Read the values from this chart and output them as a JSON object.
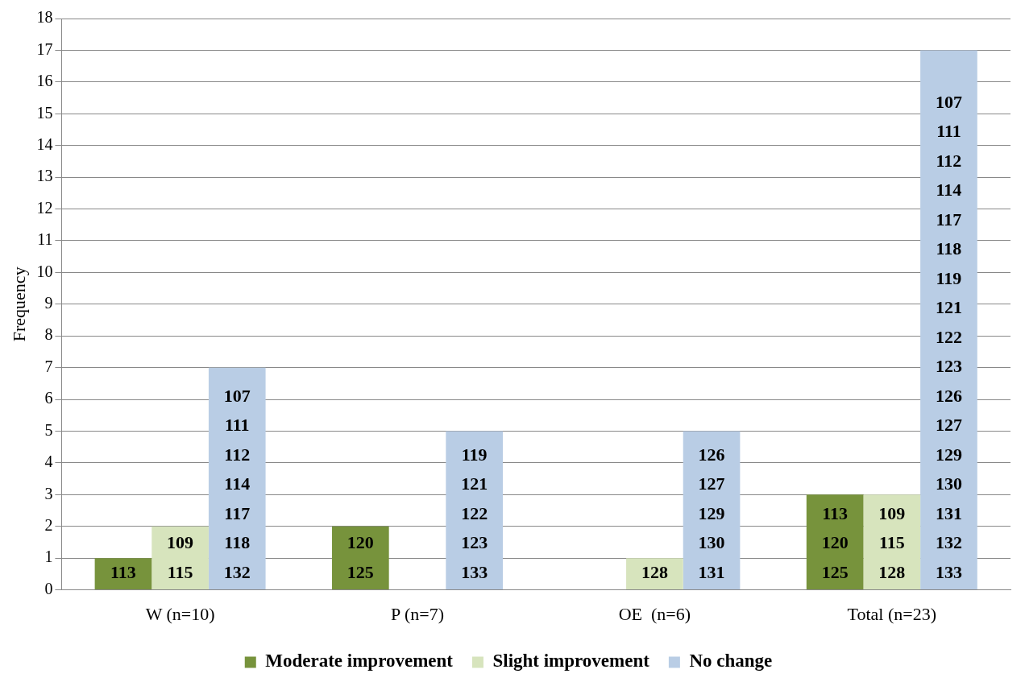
{
  "chart_data": {
    "type": "bar",
    "ylabel": "Frequency",
    "categories": [
      "W (n=10)",
      "P (n=7)",
      "OE  (n=6)",
      "Total (n=23)"
    ],
    "series": [
      {
        "name": "Moderate improvement",
        "color": "#77933c",
        "values": [
          1,
          2,
          0,
          3
        ]
      },
      {
        "name": "Slight improvement",
        "color": "#d7e4bd",
        "values": [
          2,
          0,
          1,
          3
        ]
      },
      {
        "name": "No change",
        "color": "#b9cde5",
        "values": [
          7,
          5,
          5,
          17
        ]
      }
    ],
    "annotations": [
      "113",
      "120\n125",
      "113\n120\n125",
      "109\n115",
      "128",
      "109\n115\n128",
      "107\n111\n112\n114\n117\n118\n132",
      "119\n121\n122\n123\n133",
      "126\n127\n129\n130\n131",
      "107\n111\n112\n114\n117\n118\n119\n121\n122\n123\n126\n127\n129\n130\n131\n132\n133"
    ],
    "ylim": [
      0,
      18
    ],
    "yticks": [
      0,
      1,
      2,
      3,
      4,
      5,
      6,
      7,
      8,
      9,
      10,
      11,
      12,
      13,
      14,
      15,
      16,
      17,
      18
    ],
    "grid": "y",
    "legend": "bottom"
  }
}
